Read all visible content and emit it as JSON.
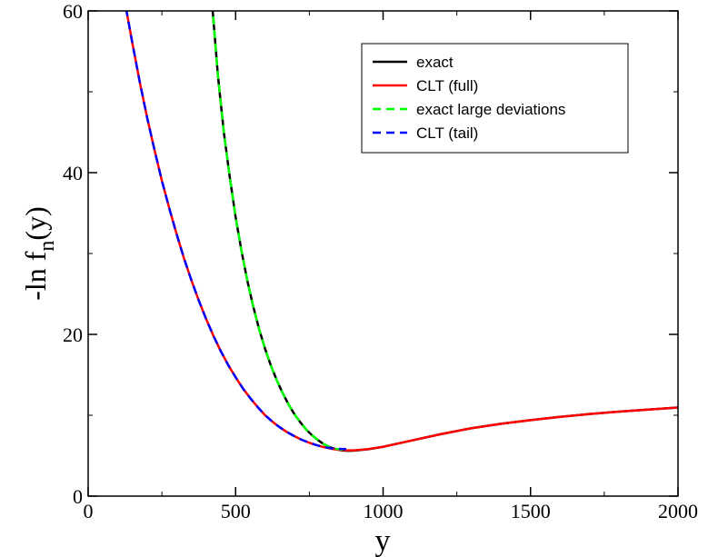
{
  "chart_data": {
    "type": "line",
    "xlabel": "y",
    "ylabel": {
      "prefix": "-ln f",
      "subscript": "n",
      "suffix": "(y)"
    },
    "xlim": [
      0,
      2000
    ],
    "ylim": [
      0,
      60
    ],
    "xticks": [
      0,
      500,
      1000,
      1500,
      2000
    ],
    "yticks": [
      0,
      20,
      40,
      60
    ],
    "xtick_labels": [
      "0",
      "500",
      "1000",
      "1500",
      "2000"
    ],
    "ytick_labels": [
      "0",
      "20",
      "40",
      "60"
    ],
    "grid": false,
    "legend_position": "top-right",
    "series": [
      {
        "name": "exact",
        "color": "#000000",
        "style": "solid",
        "x": [
          420,
          440,
          460,
          480,
          500,
          520,
          540,
          560,
          580,
          600,
          620,
          640,
          660,
          680,
          700,
          720,
          740,
          760,
          780,
          800,
          820,
          840,
          860,
          880,
          900,
          950,
          1000,
          1100,
          1200,
          1300,
          1400,
          1500,
          1600,
          1700,
          1800,
          1900,
          2000
        ],
        "y": [
          61,
          52,
          45,
          39.5,
          34.5,
          30.3,
          26.6,
          23.4,
          20.6,
          18.2,
          16.1,
          14.3,
          12.7,
          11.3,
          10.1,
          9.1,
          8.2,
          7.5,
          6.9,
          6.4,
          6.05,
          5.8,
          5.65,
          5.6,
          5.62,
          5.8,
          6.1,
          6.9,
          7.7,
          8.4,
          8.95,
          9.4,
          9.8,
          10.15,
          10.45,
          10.7,
          10.95
        ]
      },
      {
        "name": "CLT (full)",
        "color": "#ff0000",
        "style": "solid",
        "x": [
          120,
          150,
          175,
          200,
          225,
          250,
          275,
          300,
          325,
          350,
          375,
          400,
          425,
          450,
          475,
          500,
          525,
          550,
          575,
          600,
          625,
          650,
          675,
          700,
          725,
          750,
          775,
          800,
          825,
          850,
          875,
          900,
          950,
          1000,
          1100,
          1200,
          1300,
          1400,
          1500,
          1600,
          1700,
          1800,
          1900,
          2000
        ],
        "y": [
          62,
          56,
          51.2,
          46.8,
          42.8,
          39,
          35.6,
          32.4,
          29.4,
          26.7,
          24.2,
          21.9,
          19.8,
          17.9,
          16.2,
          14.7,
          13.3,
          12.1,
          11.0,
          10.0,
          9.2,
          8.5,
          7.9,
          7.4,
          6.95,
          6.6,
          6.3,
          6.05,
          5.85,
          5.72,
          5.66,
          5.66,
          5.82,
          6.1,
          6.9,
          7.7,
          8.4,
          8.95,
          9.4,
          9.8,
          10.15,
          10.45,
          10.7,
          10.95
        ]
      },
      {
        "name": "exact large deviations",
        "color": "#00ff00",
        "style": "dashed",
        "x": [
          420,
          440,
          460,
          480,
          500,
          520,
          540,
          560,
          580,
          600,
          620,
          640,
          660,
          680,
          700,
          720,
          740,
          760,
          780,
          800,
          820,
          840,
          860,
          880
        ],
        "y": [
          61,
          52,
          45,
          39.5,
          34.5,
          30.3,
          26.6,
          23.4,
          20.6,
          18.2,
          16.1,
          14.3,
          12.7,
          11.3,
          10.1,
          9.1,
          8.2,
          7.5,
          6.9,
          6.4,
          6.05,
          5.85,
          5.75,
          5.7
        ]
      },
      {
        "name": "CLT (tail)",
        "color": "#0000ff",
        "style": "dashed",
        "x": [
          120,
          150,
          175,
          200,
          225,
          250,
          275,
          300,
          325,
          350,
          375,
          400,
          425,
          450,
          475,
          500,
          525,
          550,
          575,
          600,
          625,
          650,
          675,
          700,
          725,
          750,
          775,
          800,
          825,
          850,
          875
        ],
        "y": [
          62,
          56,
          51.2,
          46.8,
          42.8,
          39,
          35.6,
          32.4,
          29.4,
          26.7,
          24.2,
          21.9,
          19.8,
          17.9,
          16.2,
          14.7,
          13.3,
          12.1,
          11.0,
          10.0,
          9.2,
          8.5,
          7.9,
          7.4,
          6.95,
          6.6,
          6.3,
          6.05,
          5.92,
          5.85,
          5.82
        ]
      }
    ]
  }
}
